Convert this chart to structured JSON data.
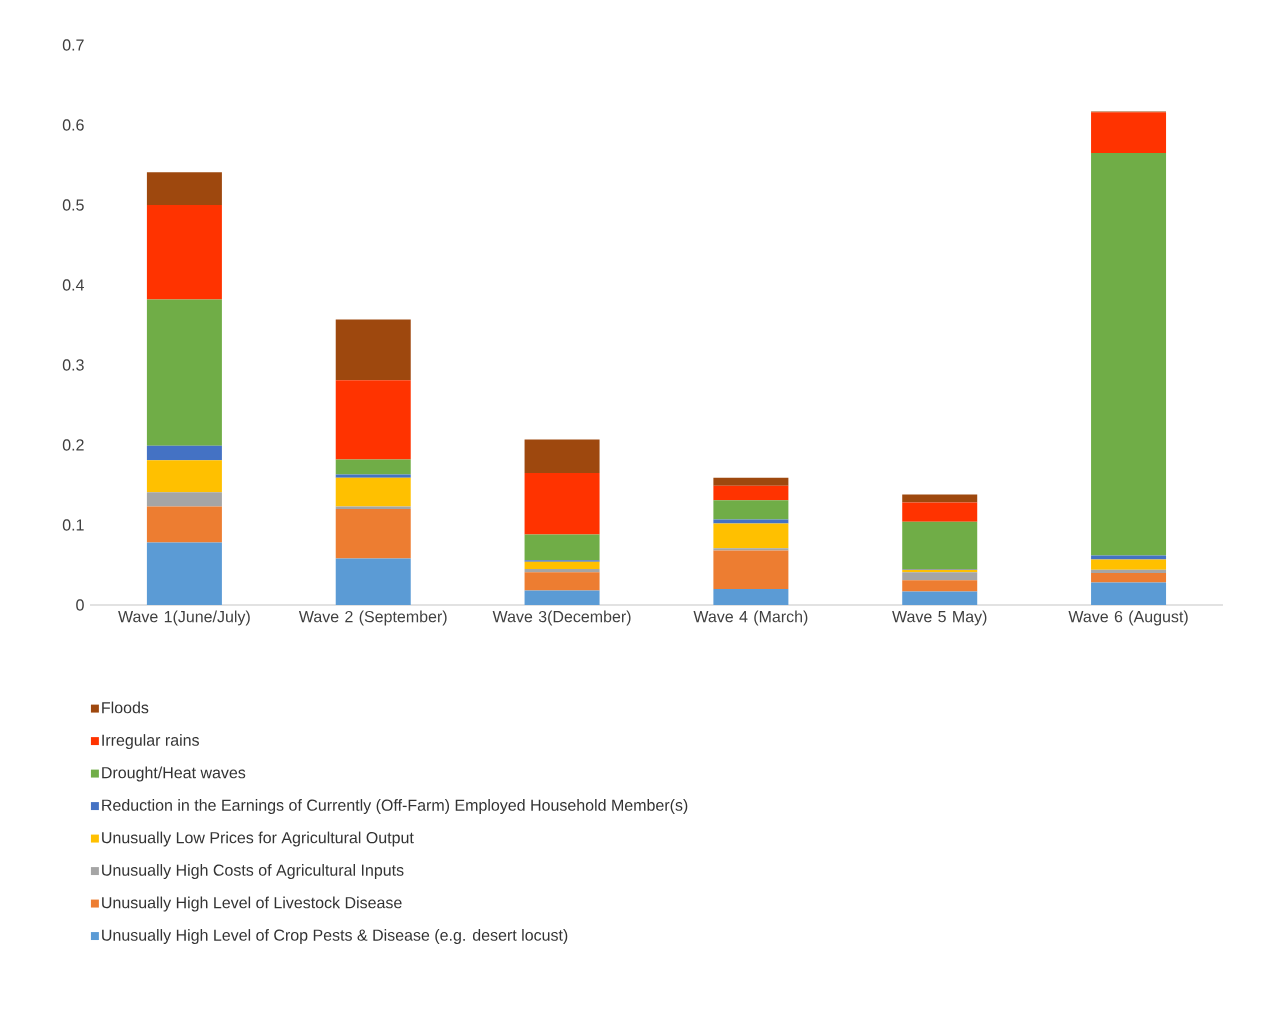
{
  "chart_data": {
    "type": "bar",
    "stacked": true,
    "categories": [
      "Wave 1(June/July)",
      "Wave 2 (September)",
      "Wave 3(December)",
      "Wave 4 (March)",
      "Wave 5 May)",
      "Wave 6 (August)"
    ],
    "series": [
      {
        "name": "Unusually High Level of Crop Pests & Disease (e.g. desert locust)",
        "color": "#5b9bd5",
        "values": [
          0.078,
          0.058,
          0.018,
          0.02,
          0.017,
          0.028
        ]
      },
      {
        "name": "Unusually High Level of Livestock Disease",
        "color": "#ed7d31",
        "values": [
          0.045,
          0.062,
          0.023,
          0.048,
          0.014,
          0.012
        ]
      },
      {
        "name": "Unusually High Costs of Agricultural Inputs",
        "color": "#a5a5a5",
        "values": [
          0.018,
          0.003,
          0.004,
          0.003,
          0.01,
          0.004
        ]
      },
      {
        "name": "Unusually Low Prices for Agricultural Output",
        "color": "#ffc000",
        "values": [
          0.04,
          0.036,
          0.009,
          0.031,
          0.003,
          0.013
        ]
      },
      {
        "name": "Reduction in the Earnings of Currently (Off-Farm) Employed Household Member(s)",
        "color": "#4472c4",
        "values": [
          0.018,
          0.004,
          0.002,
          0.005,
          0.001,
          0.005
        ]
      },
      {
        "name": "Drought/Heat waves",
        "color": "#70ad47",
        "values": [
          0.183,
          0.019,
          0.032,
          0.024,
          0.059,
          0.503
        ]
      },
      {
        "name": "Irregular rains",
        "color": "#ff3300",
        "values": [
          0.118,
          0.099,
          0.077,
          0.018,
          0.024,
          0.051
        ]
      },
      {
        "name": "Floods",
        "color": "#9e480e",
        "values": [
          0.041,
          0.076,
          0.042,
          0.01,
          0.01,
          0.001
        ]
      }
    ],
    "ylim": [
      0,
      0.7
    ],
    "yticks": [
      0,
      0.1,
      0.2,
      0.3,
      0.4,
      0.5,
      0.6,
      0.7
    ],
    "legend": "bottom"
  }
}
